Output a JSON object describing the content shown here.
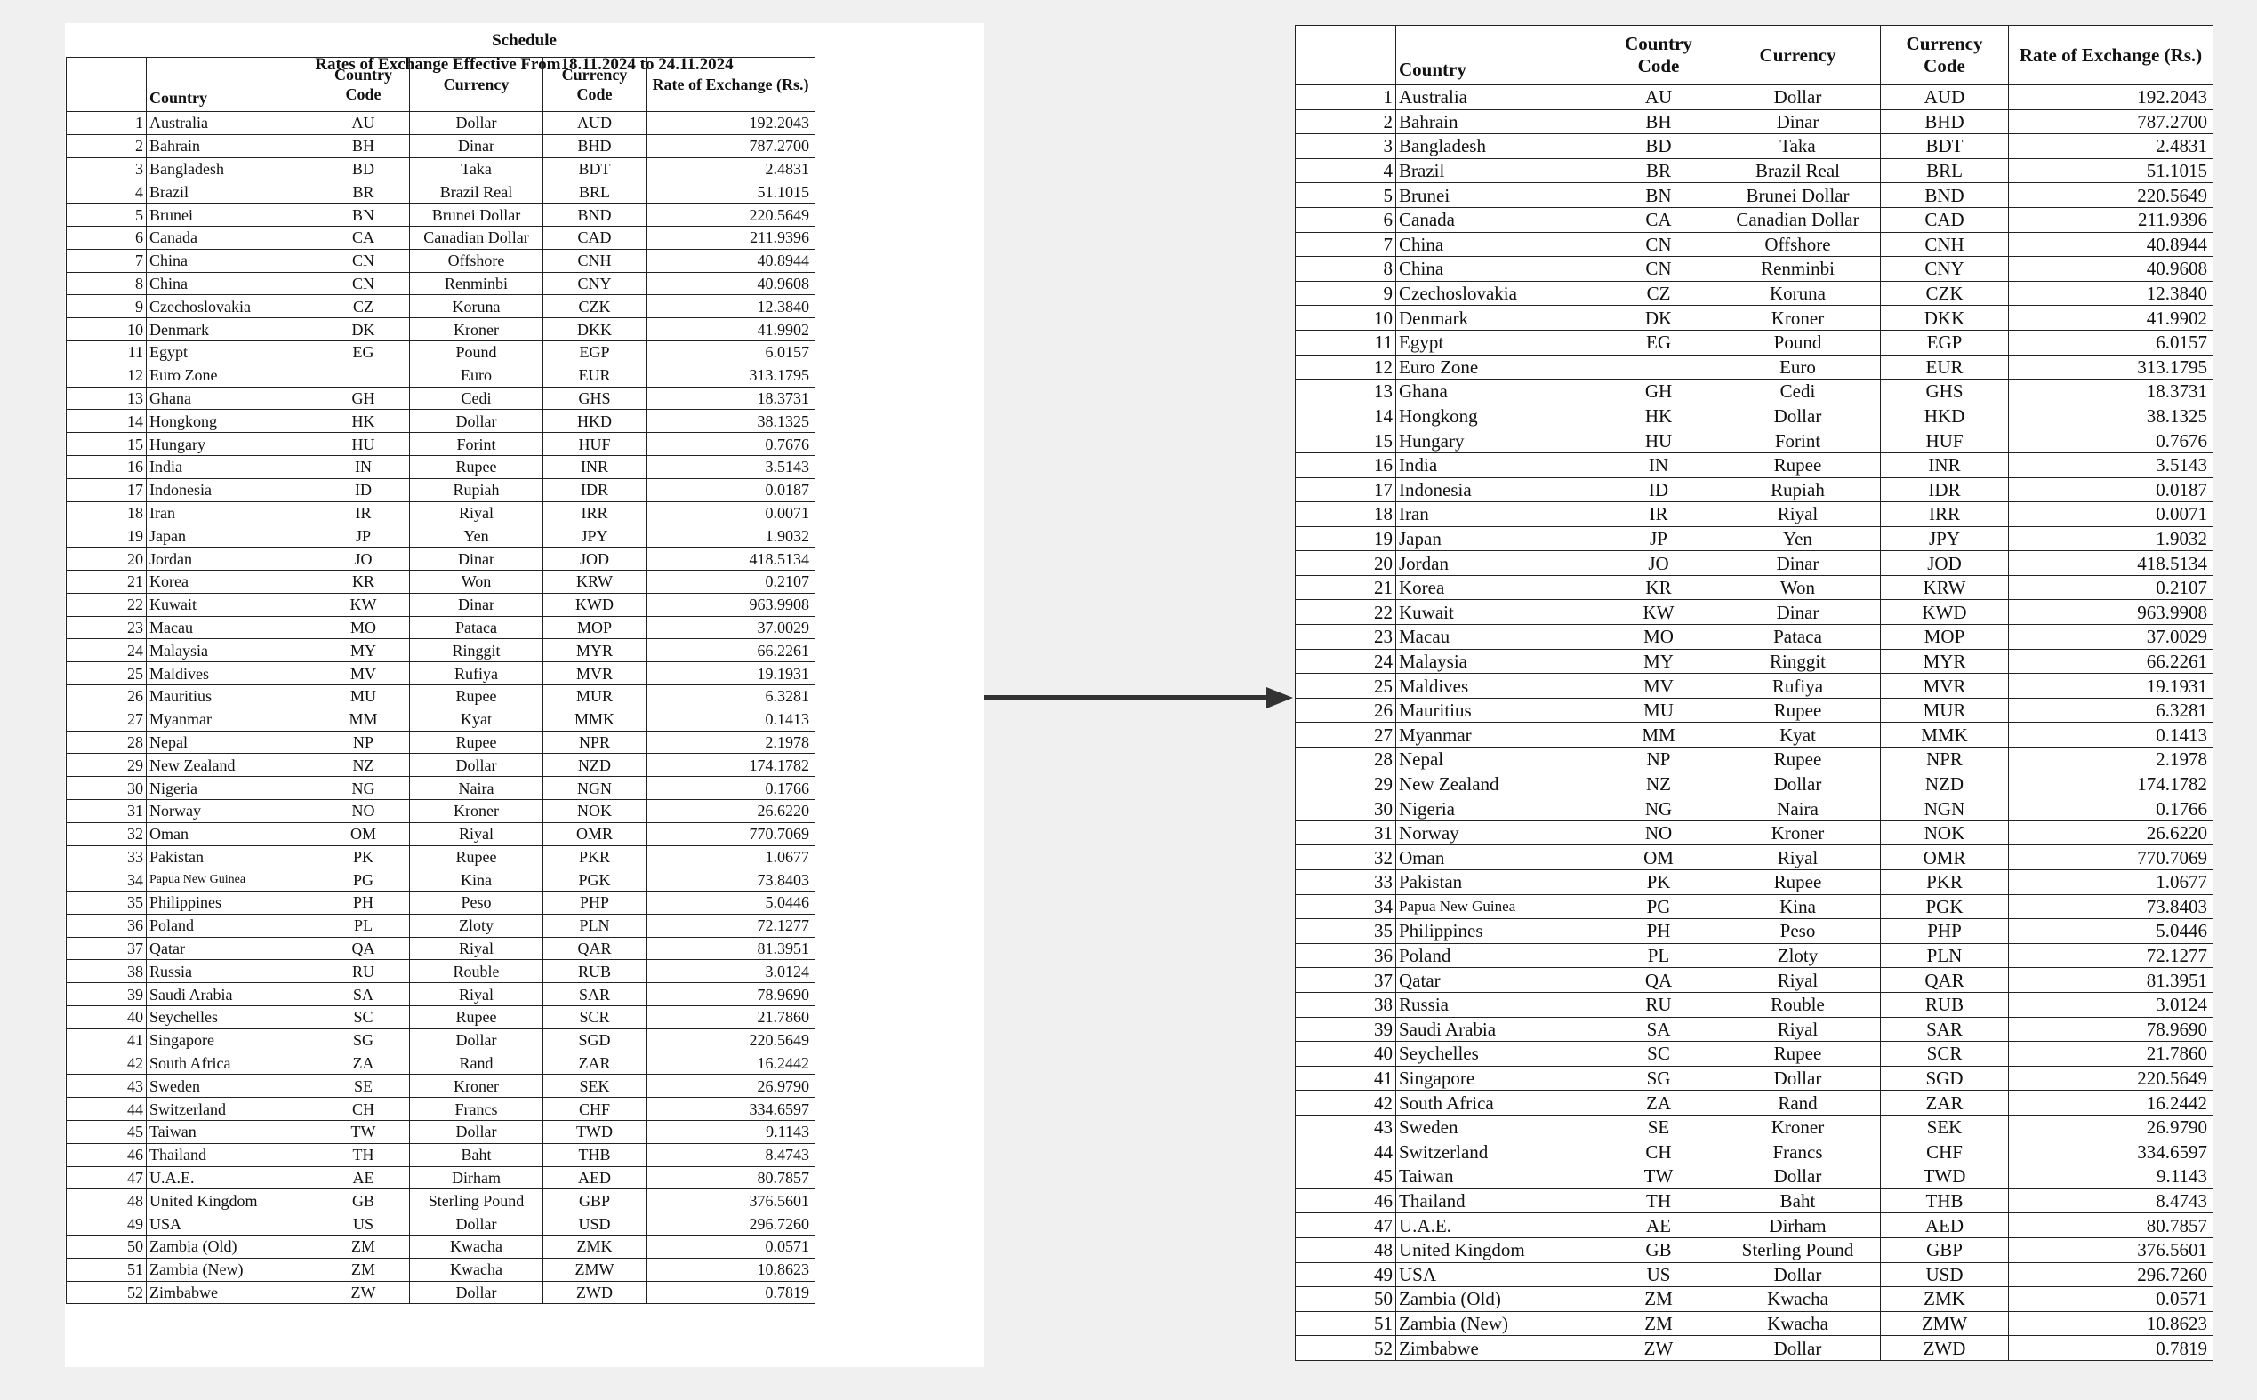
{
  "document": {
    "title": "Schedule",
    "subtitle": "Rates of Exchange Effective From18.11.2024 to 24.11.2024"
  },
  "headers": {
    "country": "Country",
    "country_code": "Country Code",
    "currency": "Currency",
    "currency_code": "Currency Code",
    "rate": "Rate of Exchange (Rs.)"
  },
  "rows": [
    {
      "no": "1",
      "country": "Australia",
      "cc": "AU",
      "currency": "Dollar",
      "code": "AUD",
      "rate": "192.2043"
    },
    {
      "no": "2",
      "country": "Bahrain",
      "cc": "BH",
      "currency": "Dinar",
      "code": "BHD",
      "rate": "787.2700"
    },
    {
      "no": "3",
      "country": "Bangladesh",
      "cc": "BD",
      "currency": "Taka",
      "code": "BDT",
      "rate": "2.4831"
    },
    {
      "no": "4",
      "country": "Brazil",
      "cc": "BR",
      "currency": "Brazil Real",
      "code": "BRL",
      "rate": "51.1015"
    },
    {
      "no": "5",
      "country": "Brunei",
      "cc": "BN",
      "currency": "Brunei Dollar",
      "code": "BND",
      "rate": "220.5649"
    },
    {
      "no": "6",
      "country": "Canada",
      "cc": "CA",
      "currency": "Canadian Dollar",
      "code": "CAD",
      "rate": "211.9396"
    },
    {
      "no": "7",
      "country": "China",
      "cc": "CN",
      "currency": "Offshore",
      "code": "CNH",
      "rate": "40.8944"
    },
    {
      "no": "8",
      "country": "China",
      "cc": "CN",
      "currency": "Renminbi",
      "code": "CNY",
      "rate": "40.9608"
    },
    {
      "no": "9",
      "country": "Czechoslovakia",
      "cc": "CZ",
      "currency": "Koruna",
      "code": "CZK",
      "rate": "12.3840"
    },
    {
      "no": "10",
      "country": "Denmark",
      "cc": "DK",
      "currency": "Kroner",
      "code": "DKK",
      "rate": "41.9902"
    },
    {
      "no": "11",
      "country": "Egypt",
      "cc": "EG",
      "currency": "Pound",
      "code": "EGP",
      "rate": "6.0157"
    },
    {
      "no": "12",
      "country": "Euro Zone",
      "cc": "",
      "currency": "Euro",
      "code": "EUR",
      "rate": "313.1795"
    },
    {
      "no": "13",
      "country": "Ghana",
      "cc": "GH",
      "currency": "Cedi",
      "code": "GHS",
      "rate": "18.3731"
    },
    {
      "no": "14",
      "country": "Hongkong",
      "cc": "HK",
      "currency": "Dollar",
      "code": "HKD",
      "rate": "38.1325"
    },
    {
      "no": "15",
      "country": "Hungary",
      "cc": "HU",
      "currency": "Forint",
      "code": "HUF",
      "rate": "0.7676"
    },
    {
      "no": "16",
      "country": "India",
      "cc": "IN",
      "currency": "Rupee",
      "code": "INR",
      "rate": "3.5143"
    },
    {
      "no": "17",
      "country": "Indonesia",
      "cc": "ID",
      "currency": "Rupiah",
      "code": "IDR",
      "rate": "0.0187"
    },
    {
      "no": "18",
      "country": "Iran",
      "cc": "IR",
      "currency": "Riyal",
      "code": "IRR",
      "rate": "0.0071"
    },
    {
      "no": "19",
      "country": "Japan",
      "cc": "JP",
      "currency": "Yen",
      "code": "JPY",
      "rate": "1.9032"
    },
    {
      "no": "20",
      "country": "Jordan",
      "cc": "JO",
      "currency": "Dinar",
      "code": "JOD",
      "rate": "418.5134"
    },
    {
      "no": "21",
      "country": "Korea",
      "cc": "KR",
      "currency": "Won",
      "code": "KRW",
      "rate": "0.2107"
    },
    {
      "no": "22",
      "country": "Kuwait",
      "cc": "KW",
      "currency": "Dinar",
      "code": "KWD",
      "rate": "963.9908"
    },
    {
      "no": "23",
      "country": "Macau",
      "cc": "MO",
      "currency": "Pataca",
      "code": "MOP",
      "rate": "37.0029"
    },
    {
      "no": "24",
      "country": "Malaysia",
      "cc": "MY",
      "currency": "Ringgit",
      "code": "MYR",
      "rate": "66.2261"
    },
    {
      "no": "25",
      "country": "Maldives",
      "cc": "MV",
      "currency": "Rufiya",
      "code": "MVR",
      "rate": "19.1931"
    },
    {
      "no": "26",
      "country": "Mauritius",
      "cc": "MU",
      "currency": "Rupee",
      "code": "MUR",
      "rate": "6.3281"
    },
    {
      "no": "27",
      "country": "Myanmar",
      "cc": "MM",
      "currency": "Kyat",
      "code": "MMK",
      "rate": "0.1413"
    },
    {
      "no": "28",
      "country": "Nepal",
      "cc": "NP",
      "currency": "Rupee",
      "code": "NPR",
      "rate": "2.1978"
    },
    {
      "no": "29",
      "country": "New Zealand",
      "cc": "NZ",
      "currency": "Dollar",
      "code": "NZD",
      "rate": "174.1782"
    },
    {
      "no": "30",
      "country": "Nigeria",
      "cc": "NG",
      "currency": "Naira",
      "code": "NGN",
      "rate": "0.1766"
    },
    {
      "no": "31",
      "country": "Norway",
      "cc": "NO",
      "currency": "Kroner",
      "code": "NOK",
      "rate": "26.6220"
    },
    {
      "no": "32",
      "country": "Oman",
      "cc": "OM",
      "currency": "Riyal",
      "code": "OMR",
      "rate": "770.7069"
    },
    {
      "no": "33",
      "country": "Pakistan",
      "cc": "PK",
      "currency": "Rupee",
      "code": "PKR",
      "rate": "1.0677"
    },
    {
      "no": "34",
      "country": "Papua New Guinea",
      "cc": "PG",
      "currency": "Kina",
      "code": "PGK",
      "rate": "73.8403",
      "small": true
    },
    {
      "no": "35",
      "country": "Philippines",
      "cc": "PH",
      "currency": "Peso",
      "code": "PHP",
      "rate": "5.0446"
    },
    {
      "no": "36",
      "country": "Poland",
      "cc": "PL",
      "currency": "Zloty",
      "code": "PLN",
      "rate": "72.1277"
    },
    {
      "no": "37",
      "country": "Qatar",
      "cc": "QA",
      "currency": "Riyal",
      "code": "QAR",
      "rate": "81.3951"
    },
    {
      "no": "38",
      "country": "Russia",
      "cc": "RU",
      "currency": "Rouble",
      "code": "RUB",
      "rate": "3.0124"
    },
    {
      "no": "39",
      "country": "Saudi Arabia",
      "cc": "SA",
      "currency": "Riyal",
      "code": "SAR",
      "rate": "78.9690"
    },
    {
      "no": "40",
      "country": "Seychelles",
      "cc": "SC",
      "currency": "Rupee",
      "code": "SCR",
      "rate": "21.7860"
    },
    {
      "no": "41",
      "country": "Singapore",
      "cc": "SG",
      "currency": "Dollar",
      "code": "SGD",
      "rate": "220.5649"
    },
    {
      "no": "42",
      "country": "South Africa",
      "cc": "ZA",
      "currency": "Rand",
      "code": "ZAR",
      "rate": "16.2442"
    },
    {
      "no": "43",
      "country": "Sweden",
      "cc": "SE",
      "currency": "Kroner",
      "code": "SEK",
      "rate": "26.9790"
    },
    {
      "no": "44",
      "country": "Switzerland",
      "cc": "CH",
      "currency": "Francs",
      "code": "CHF",
      "rate": "334.6597"
    },
    {
      "no": "45",
      "country": "Taiwan",
      "cc": "TW",
      "currency": "Dollar",
      "code": "TWD",
      "rate": "9.1143"
    },
    {
      "no": "46",
      "country": "Thailand",
      "cc": "TH",
      "currency": "Baht",
      "code": "THB",
      "rate": "8.4743"
    },
    {
      "no": "47",
      "country": "U.A.E.",
      "cc": "AE",
      "currency": "Dirham",
      "code": "AED",
      "rate": "80.7857"
    },
    {
      "no": "48",
      "country": "United Kingdom",
      "cc": "GB",
      "currency": "Sterling Pound",
      "code": "GBP",
      "rate": "376.5601"
    },
    {
      "no": "49",
      "country": "USA",
      "cc": "US",
      "currency": "Dollar",
      "code": "USD",
      "rate": "296.7260"
    },
    {
      "no": "50",
      "country": "Zambia (Old)",
      "cc": "ZM",
      "currency": "Kwacha",
      "code": "ZMK",
      "rate": "0.0571"
    },
    {
      "no": "51",
      "country": "Zambia (New)",
      "cc": "ZM",
      "currency": "Kwacha",
      "code": "ZMW",
      "rate": "10.8623"
    },
    {
      "no": "52",
      "country": "Zimbabwe",
      "cc": "ZW",
      "currency": "Dollar",
      "code": "ZWD",
      "rate": "0.7819"
    }
  ],
  "colors": {
    "arrow": "#333333",
    "border": "#222222",
    "page": "#ffffff",
    "background": "#f0f0f0"
  },
  "icons": {
    "arrow": "right-arrow-icon"
  }
}
